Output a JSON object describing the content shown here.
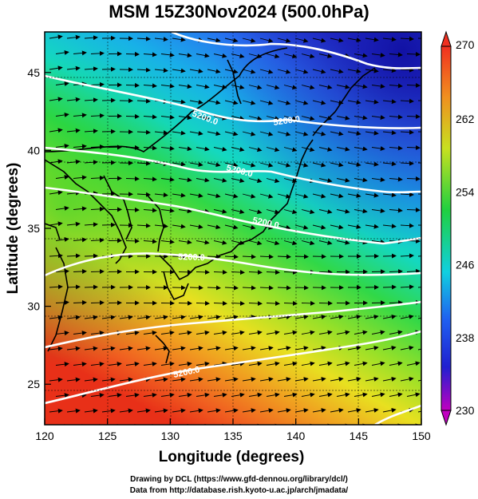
{
  "title": "MSM 15Z30Nov2024 (500.0hPa)",
  "x_axis": {
    "label": "Longitude (degrees)",
    "ticks": [
      "120",
      "125",
      "130",
      "135",
      "140",
      "145",
      "150"
    ]
  },
  "y_axis": {
    "label": "Latitude  (degrees)",
    "ticks": [
      "25",
      "30",
      "35",
      "40",
      "45"
    ]
  },
  "colorbar": {
    "ticks": [
      "270",
      "262",
      "254",
      "246",
      "238",
      "230"
    ]
  },
  "contour_labels": [
    "5200.0",
    "5200.0",
    "5200.0",
    "5200.0",
    "5200.0",
    "5200.0"
  ],
  "credits": {
    "line1": "Drawing by DCL (https://www.gfd-dennou.org/library/dcl/)",
    "line2": "Data from http://database.rish.kyoto-u.ac.jp/arch/jmadata/"
  },
  "chart_data": {
    "type": "heatmap",
    "title": "MSM 15Z30Nov2024 (500.0hPa)",
    "xlabel": "Longitude (degrees)",
    "ylabel": "Latitude  (degrees)",
    "xlim": [
      120,
      150
    ],
    "ylim": [
      22.4,
      47.6
    ],
    "color_range": [
      230,
      270
    ],
    "contour_level": 5200.0,
    "vector_field": "wind arrows (westerly flow)",
    "grid": true
  }
}
